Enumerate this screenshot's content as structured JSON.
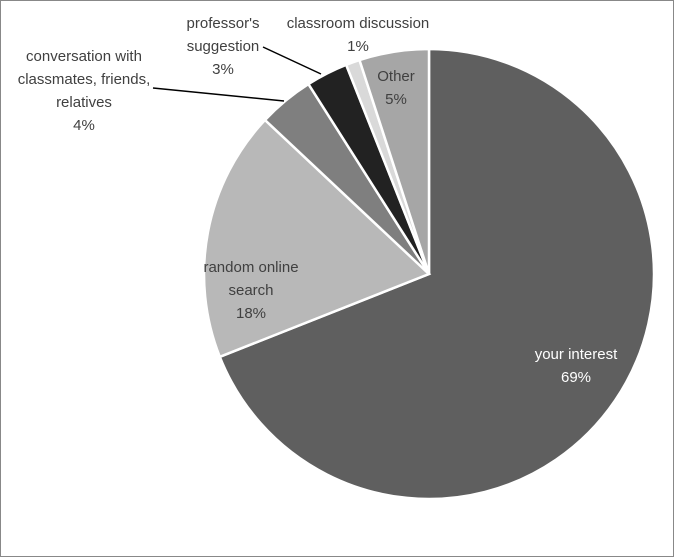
{
  "chart_data": {
    "type": "pie",
    "categories": [
      "your interest",
      "random online search",
      "conversation with classmates, friends, relatives",
      "professor's suggestion",
      "classroom discussion",
      "Other"
    ],
    "values": [
      69,
      18,
      4,
      3,
      1,
      5
    ],
    "value_labels": [
      "69%",
      "18%",
      "4%",
      "3%",
      "1%",
      "5%"
    ],
    "colors": [
      "#5f5f5f",
      "#b8b8b8",
      "#7f7f7f",
      "#222222",
      "#d9d9d9",
      "#a6a6a6"
    ]
  }
}
